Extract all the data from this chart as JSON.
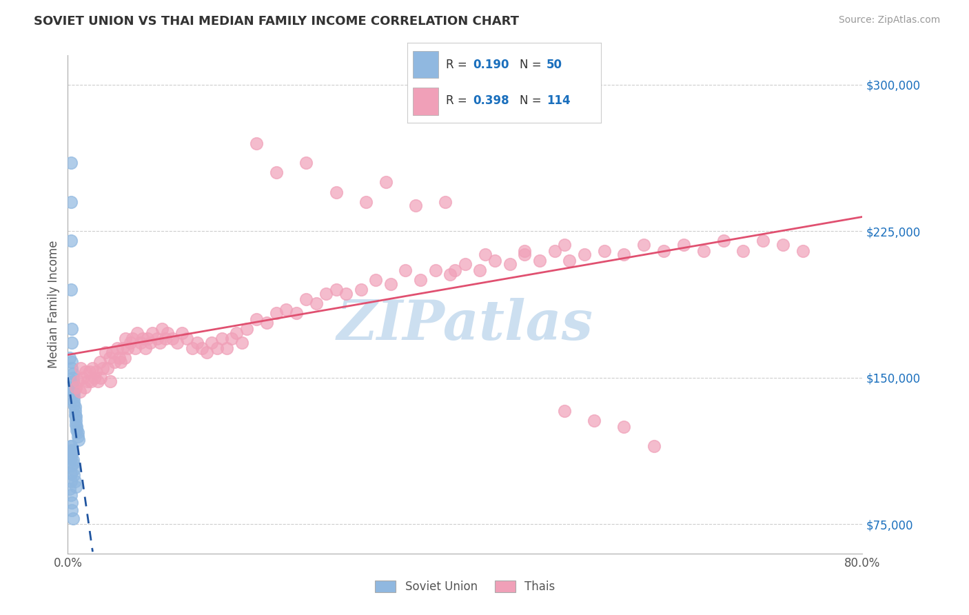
{
  "title": "SOVIET UNION VS THAI MEDIAN FAMILY INCOME CORRELATION CHART",
  "source": "Source: ZipAtlas.com",
  "ylabel": "Median Family Income",
  "xlim": [
    0.0,
    0.8
  ],
  "ylim": [
    60000,
    315000
  ],
  "yticks": [
    75000,
    150000,
    225000,
    300000
  ],
  "ytick_labels": [
    "$75,000",
    "$150,000",
    "$225,000",
    "$300,000"
  ],
  "soviet_color": "#90b8e0",
  "soviet_edge_color": "#90b8e0",
  "thai_color": "#f0a0b8",
  "thai_edge_color": "#f0a0b8",
  "soviet_R": 0.19,
  "soviet_N": 50,
  "thai_R": 0.398,
  "thai_N": 114,
  "blue_text_color": "#1a6fbd",
  "watermark_color": "#ccdff0",
  "watermark_text": "ZIPatlas",
  "legend_label_soviet": "Soviet Union",
  "legend_label_thai": "Thais",
  "soviet_line_color": "#2055a0",
  "thai_line_color": "#e05070",
  "soviet_scatter_x": [
    0.002,
    0.002,
    0.003,
    0.003,
    0.003,
    0.003,
    0.004,
    0.004,
    0.004,
    0.004,
    0.005,
    0.005,
    0.005,
    0.005,
    0.005,
    0.006,
    0.006,
    0.006,
    0.006,
    0.007,
    0.007,
    0.007,
    0.008,
    0.008,
    0.008,
    0.009,
    0.009,
    0.01,
    0.01,
    0.011,
    0.003,
    0.004,
    0.004,
    0.005,
    0.005,
    0.006,
    0.006,
    0.007,
    0.008,
    0.003,
    0.004,
    0.004,
    0.005,
    0.003,
    0.004,
    0.003,
    0.004,
    0.003,
    0.003,
    0.002
  ],
  "soviet_scatter_y": [
    145000,
    160000,
    240000,
    260000,
    220000,
    195000,
    175000,
    168000,
    158000,
    155000,
    152000,
    150000,
    148000,
    145000,
    143000,
    142000,
    140000,
    138000,
    136000,
    135000,
    133000,
    131000,
    130000,
    128000,
    126000,
    125000,
    123000,
    122000,
    120000,
    118000,
    115000,
    113000,
    111000,
    108000,
    106000,
    103000,
    100000,
    97000,
    94000,
    90000,
    86000,
    82000,
    78000,
    115000,
    112000,
    109000,
    105000,
    101000,
    97000,
    93000
  ],
  "thai_scatter_x": [
    0.008,
    0.01,
    0.012,
    0.013,
    0.015,
    0.017,
    0.018,
    0.02,
    0.022,
    0.023,
    0.025,
    0.027,
    0.028,
    0.03,
    0.032,
    0.033,
    0.035,
    0.038,
    0.04,
    0.042,
    0.043,
    0.045,
    0.047,
    0.05,
    0.052,
    0.053,
    0.055,
    0.057,
    0.058,
    0.06,
    0.063,
    0.065,
    0.068,
    0.07,
    0.073,
    0.075,
    0.078,
    0.08,
    0.083,
    0.085,
    0.09,
    0.093,
    0.095,
    0.098,
    0.1,
    0.105,
    0.11,
    0.115,
    0.12,
    0.125,
    0.13,
    0.135,
    0.14,
    0.145,
    0.15,
    0.155,
    0.16,
    0.165,
    0.17,
    0.175,
    0.18,
    0.19,
    0.2,
    0.21,
    0.22,
    0.23,
    0.24,
    0.25,
    0.26,
    0.27,
    0.28,
    0.295,
    0.31,
    0.325,
    0.34,
    0.355,
    0.37,
    0.385,
    0.4,
    0.415,
    0.43,
    0.445,
    0.46,
    0.475,
    0.49,
    0.505,
    0.52,
    0.54,
    0.56,
    0.58,
    0.6,
    0.62,
    0.64,
    0.66,
    0.68,
    0.7,
    0.72,
    0.74,
    0.19,
    0.21,
    0.24,
    0.27,
    0.3,
    0.32,
    0.35,
    0.38,
    0.5,
    0.53,
    0.56,
    0.59,
    0.39,
    0.42,
    0.46,
    0.5
  ],
  "thai_scatter_y": [
    145000,
    148000,
    143000,
    155000,
    150000,
    145000,
    153000,
    148000,
    153000,
    148000,
    155000,
    150000,
    153000,
    148000,
    158000,
    150000,
    155000,
    163000,
    155000,
    160000,
    148000,
    163000,
    158000,
    165000,
    160000,
    158000,
    165000,
    160000,
    170000,
    165000,
    168000,
    170000,
    165000,
    173000,
    168000,
    170000,
    165000,
    170000,
    168000,
    173000,
    170000,
    168000,
    175000,
    170000,
    173000,
    170000,
    168000,
    173000,
    170000,
    165000,
    168000,
    165000,
    163000,
    168000,
    165000,
    170000,
    165000,
    170000,
    173000,
    168000,
    175000,
    180000,
    178000,
    183000,
    185000,
    183000,
    190000,
    188000,
    193000,
    195000,
    193000,
    195000,
    200000,
    198000,
    205000,
    200000,
    205000,
    203000,
    208000,
    205000,
    210000,
    208000,
    213000,
    210000,
    215000,
    210000,
    213000,
    215000,
    213000,
    218000,
    215000,
    218000,
    215000,
    220000,
    215000,
    220000,
    218000,
    215000,
    270000,
    255000,
    260000,
    245000,
    240000,
    250000,
    238000,
    240000,
    133000,
    128000,
    125000,
    115000,
    205000,
    213000,
    215000,
    218000
  ]
}
